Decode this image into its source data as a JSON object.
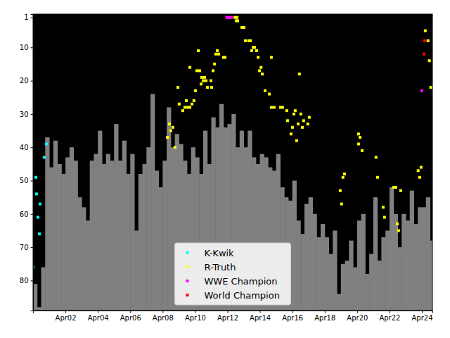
{
  "chart_data": {
    "type": "bar",
    "xlim": [
      2000.25,
      2024.9
    ],
    "ylim": [
      89,
      0
    ],
    "xticks": [
      {
        "value": 2002.25,
        "label": "Apr02"
      },
      {
        "value": 2004.25,
        "label": "Apr04"
      },
      {
        "value": 2006.25,
        "label": "Apr06"
      },
      {
        "value": 2008.25,
        "label": "Apr08"
      },
      {
        "value": 2010.25,
        "label": "Apr10"
      },
      {
        "value": 2012.25,
        "label": "Apr12"
      },
      {
        "value": 2014.25,
        "label": "Apr14"
      },
      {
        "value": 2016.25,
        "label": "Apr16"
      },
      {
        "value": 2018.25,
        "label": "Apr18"
      },
      {
        "value": 2020.25,
        "label": "Apr20"
      },
      {
        "value": 2022.25,
        "label": "Apr22"
      },
      {
        "value": 2024.25,
        "label": "Apr24"
      }
    ],
    "yticks": [
      1,
      10,
      20,
      30,
      40,
      50,
      60,
      70,
      80
    ],
    "legend": "lower center",
    "series": [
      {
        "type": "bar",
        "color": "#808080",
        "x": [
          2000.25,
          2000.5,
          2000.75,
          2001.0,
          2001.25,
          2001.5,
          2001.75,
          2002.0,
          2002.25,
          2002.5,
          2002.75,
          2003.0,
          2003.25,
          2003.5,
          2003.75,
          2004.0,
          2004.25,
          2004.5,
          2004.75,
          2005.0,
          2005.25,
          2005.5,
          2005.75,
          2006.0,
          2006.25,
          2006.5,
          2006.75,
          2007.0,
          2007.25,
          2007.5,
          2007.75,
          2008.0,
          2008.25,
          2008.5,
          2008.75,
          2009.0,
          2009.25,
          2009.5,
          2009.75,
          2010.0,
          2010.25,
          2010.5,
          2010.75,
          2011.0,
          2011.25,
          2011.5,
          2011.75,
          2012.0,
          2012.25,
          2012.5,
          2012.75,
          2013.0,
          2013.25,
          2013.5,
          2013.75,
          2014.0,
          2014.25,
          2014.5,
          2014.75,
          2015.0,
          2015.25,
          2015.5,
          2015.75,
          2016.0,
          2016.25,
          2016.5,
          2016.75,
          2017.0,
          2017.25,
          2017.5,
          2017.75,
          2018.0,
          2018.25,
          2018.5,
          2018.75,
          2019.0,
          2019.25,
          2019.5,
          2019.75,
          2020.0,
          2020.25,
          2020.5,
          2020.75,
          2021.0,
          2021.25,
          2021.5,
          2021.75,
          2022.0,
          2022.25,
          2022.5,
          2022.75,
          2023.0,
          2023.25,
          2023.5,
          2023.75,
          2024.0,
          2024.25,
          2024.5,
          2024.75
        ],
        "values": [
          81,
          88,
          76,
          37,
          46,
          38,
          45,
          48,
          43,
          40,
          44,
          55,
          58,
          62,
          44,
          42,
          35,
          45,
          42,
          44,
          33,
          44,
          38,
          48,
          42,
          65,
          48,
          45,
          40,
          24,
          47,
          52,
          44,
          28,
          40,
          36,
          39,
          44,
          48,
          40,
          43,
          48,
          35,
          45,
          31,
          34,
          27,
          34,
          33,
          30,
          40,
          35,
          40,
          35,
          43,
          45,
          42,
          43,
          46,
          47,
          42,
          52,
          55,
          56,
          50,
          62,
          66,
          57,
          55,
          60,
          67,
          63,
          67,
          72,
          65,
          84,
          75,
          74,
          68,
          76,
          62,
          60,
          78,
          72,
          55,
          74,
          67,
          65,
          52,
          60,
          70,
          60,
          62,
          53,
          63,
          58,
          58,
          55,
          68
        ]
      },
      {
        "name": "K-Kwik",
        "type": "scatter",
        "marker": "square",
        "color": "#00ffff",
        "x": [
          2000.25,
          2000.42,
          2000.47,
          2000.55,
          2000.68,
          2000.64,
          2000.94,
          2001.07
        ],
        "values": [
          76,
          49,
          54,
          61,
          57,
          66,
          43,
          39
        ]
      },
      {
        "name": "R-Truth",
        "type": "scatter",
        "marker": "square",
        "color": "#ffff00",
        "x": [
          2008.54,
          2008.67,
          2008.75,
          2008.88,
          2009.01,
          2009.19,
          2009.27,
          2009.49,
          2009.62,
          2009.71,
          2009.8,
          2009.93,
          2010.06,
          2010.18,
          2009.93,
          2010.27,
          2010.36,
          2010.45,
          2010.53,
          2010.62,
          2010.66,
          2010.75,
          2010.84,
          2010.93,
          2011.01,
          2011.23,
          2011.27,
          2011.36,
          2011.45,
          2011.53,
          2011.62,
          2011.71,
          2012.01,
          2012.1,
          2012.71,
          2012.79,
          2012.84,
          2012.88,
          2013.14,
          2013.27,
          2013.36,
          2013.57,
          2013.66,
          2013.75,
          2013.84,
          2013.92,
          2014.05,
          2014.14,
          2014.23,
          2014.32,
          2014.4,
          2014.57,
          2014.83,
          2014.96,
          2014.96,
          2015.13,
          2015.52,
          2015.65,
          2015.91,
          2015.96,
          2016.17,
          2016.26,
          2016.35,
          2016.43,
          2016.52,
          2016.61,
          2016.69,
          2016.78,
          2016.87,
          2016.95,
          2017.21,
          2017.3,
          2019.21,
          2019.29,
          2019.38,
          2019.47,
          2020.34,
          2020.43,
          2020.34,
          2020.56,
          2021.42,
          2021.51,
          2021.86,
          2021.94,
          2022.51,
          2022.64,
          2022.73,
          2022.81,
          2022.94,
          2024.02,
          2024.11,
          2024.2,
          2024.46,
          2024.63,
          2024.71,
          2024.8
        ],
        "values": [
          37,
          33,
          35,
          34,
          40,
          22,
          27,
          29,
          28,
          26,
          28,
          28,
          27,
          26,
          16,
          23,
          17,
          11,
          17,
          21,
          19,
          20,
          19,
          20,
          22,
          20,
          22,
          17,
          15,
          12,
          11,
          12,
          13,
          13,
          1,
          2,
          1,
          2,
          4,
          4,
          8,
          8,
          8,
          11,
          10,
          10,
          11,
          13,
          17,
          16,
          18,
          23,
          24,
          13,
          28,
          28,
          28,
          28,
          29,
          32,
          36,
          34,
          30,
          29,
          38,
          33,
          18,
          30,
          34,
          32,
          33,
          31,
          53,
          57,
          49,
          48,
          36,
          37,
          39,
          41,
          43,
          49,
          58,
          61,
          52,
          52,
          63,
          65,
          53,
          47,
          49,
          46,
          5,
          8,
          14,
          22
        ]
      },
      {
        "name": "WWE Champion",
        "type": "scatter",
        "marker": "square",
        "color": "#ff00ff",
        "x": [
          2012.2,
          2012.3,
          2012.4,
          2012.5,
          2024.24
        ],
        "values": [
          1,
          1,
          1,
          1,
          23
        ]
      },
      {
        "name": "World Champion",
        "type": "scatter",
        "marker": "square",
        "color": "#ff0000",
        "x": [
          2024.42,
          2024.38
        ],
        "values": [
          8,
          12
        ]
      }
    ]
  }
}
